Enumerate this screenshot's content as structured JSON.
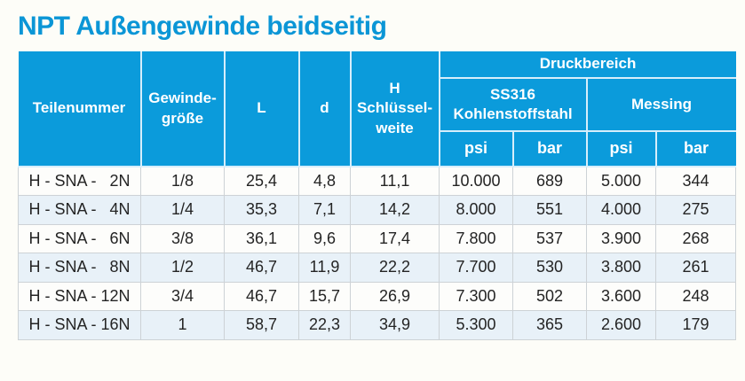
{
  "title": "NPT Außengewinde beidseitig",
  "colors": {
    "accent_blue": "#0b9bdb",
    "title_blue": "#0b96d6",
    "row_alt": "#e8f1f8",
    "header_text": "#ffffff",
    "body_text": "#242424"
  },
  "table": {
    "headers": {
      "teilenummer": "Teilenummer",
      "gewindegroesse": "Gewinde-\ngröße",
      "l": "L",
      "d": "d",
      "schluesselweite": "H\nSchlüssel-\nweite",
      "druckbereich": "Druckbereich",
      "ss316": "SS316\nKohlenstoffstahl",
      "messing": "Messing",
      "psi": "psi",
      "bar": "bar"
    },
    "rows": [
      {
        "part_prefix": "H - SNA -",
        "part_no": "2N",
        "gewinde": "1/8",
        "l": "25,4",
        "d": "4,8",
        "h": "11,1",
        "ss_psi": "10.000",
        "ss_bar": "689",
        "ms_psi": "5.000",
        "ms_bar": "344"
      },
      {
        "part_prefix": "H - SNA -",
        "part_no": "4N",
        "gewinde": "1/4",
        "l": "35,3",
        "d": "7,1",
        "h": "14,2",
        "ss_psi": "8.000",
        "ss_bar": "551",
        "ms_psi": "4.000",
        "ms_bar": "275"
      },
      {
        "part_prefix": "H - SNA -",
        "part_no": "6N",
        "gewinde": "3/8",
        "l": "36,1",
        "d": "9,6",
        "h": "17,4",
        "ss_psi": "7.800",
        "ss_bar": "537",
        "ms_psi": "3.900",
        "ms_bar": "268"
      },
      {
        "part_prefix": "H - SNA -",
        "part_no": "8N",
        "gewinde": "1/2",
        "l": "46,7",
        "d": "11,9",
        "h": "22,2",
        "ss_psi": "7.700",
        "ss_bar": "530",
        "ms_psi": "3.800",
        "ms_bar": "261"
      },
      {
        "part_prefix": "H - SNA -",
        "part_no": "12N",
        "gewinde": "3/4",
        "l": "46,7",
        "d": "15,7",
        "h": "26,9",
        "ss_psi": "7.300",
        "ss_bar": "502",
        "ms_psi": "3.600",
        "ms_bar": "248"
      },
      {
        "part_prefix": "H - SNA -",
        "part_no": "16N",
        "gewinde": "1",
        "l": "58,7",
        "d": "22,3",
        "h": "34,9",
        "ss_psi": "5.300",
        "ss_bar": "365",
        "ms_psi": "2.600",
        "ms_bar": "179"
      }
    ]
  }
}
